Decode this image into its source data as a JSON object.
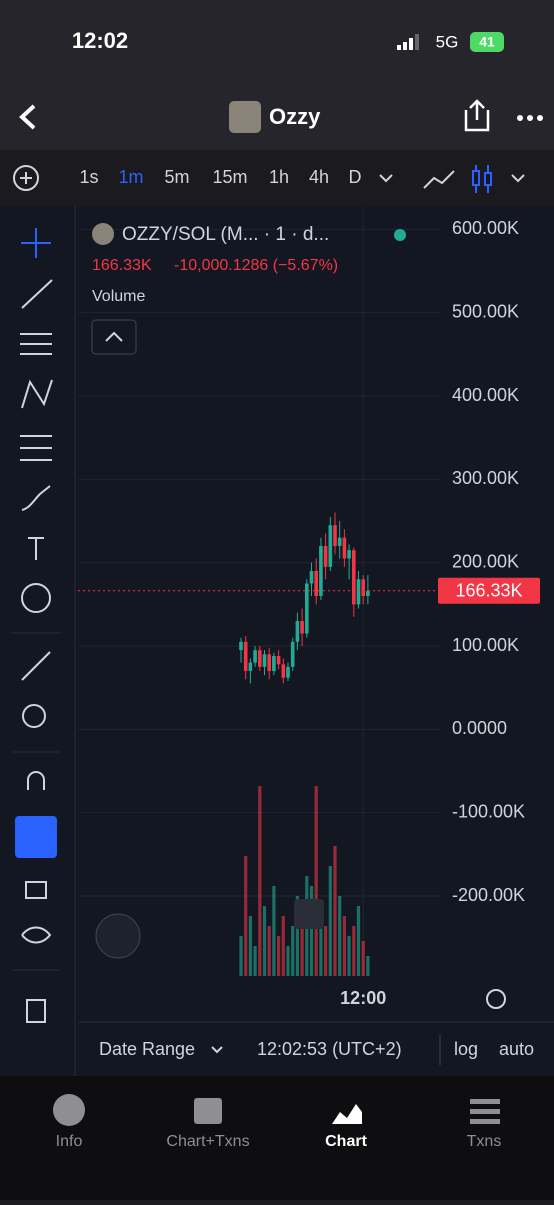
{
  "status": {
    "time": "12:02",
    "network": "5G",
    "battery": "41"
  },
  "header": {
    "title": "Ozzy"
  },
  "toolbar": {
    "intervals": [
      "1s",
      "1m",
      "5m",
      "15m",
      "1h",
      "4h",
      "D"
    ],
    "active": 1
  },
  "chart_data": {
    "type": "candlestick",
    "title": "OZZY/SOL (M... · 1 · d...",
    "price": "166.33K",
    "change": "-10,000.1286 (−5.67%)",
    "volume_label": "Volume",
    "categories": [
      null,
      null,
      null,
      null,
      null,
      null,
      null,
      null,
      null,
      null,
      null,
      null,
      null,
      null,
      null,
      null,
      null,
      null,
      null,
      null,
      null,
      null,
      null,
      null,
      null,
      null,
      "12:00",
      null
    ],
    "open": [
      95000,
      105000,
      70000,
      80000,
      95000,
      75000,
      90000,
      70000,
      88000,
      78000,
      62000,
      75000,
      105000,
      130000,
      115000,
      175000,
      190000,
      160000,
      220000,
      195000,
      245000,
      220000,
      230000,
      205000,
      215000,
      150000,
      180000,
      160000
    ],
    "high": [
      110000,
      112000,
      85000,
      100000,
      100000,
      95000,
      98000,
      92000,
      95000,
      85000,
      80000,
      110000,
      140000,
      145000,
      180000,
      200000,
      205000,
      230000,
      235000,
      255000,
      260000,
      250000,
      240000,
      222000,
      218000,
      190000,
      185000,
      185000
    ],
    "low": [
      80000,
      60000,
      55000,
      75000,
      70000,
      65000,
      60000,
      65000,
      72000,
      55000,
      58000,
      70000,
      95000,
      100000,
      110000,
      160000,
      150000,
      155000,
      180000,
      190000,
      210000,
      205000,
      195000,
      180000,
      135000,
      145000,
      150000,
      150000
    ],
    "close": [
      105000,
      70000,
      80000,
      95000,
      75000,
      90000,
      70000,
      88000,
      78000,
      62000,
      75000,
      105000,
      130000,
      115000,
      175000,
      190000,
      160000,
      220000,
      195000,
      245000,
      220000,
      230000,
      205000,
      215000,
      150000,
      180000,
      160000,
      166330
    ],
    "volume": [
      40,
      120,
      60,
      30,
      190,
      70,
      50,
      90,
      40,
      60,
      30,
      50,
      80,
      60,
      100,
      90,
      190,
      70,
      50,
      110,
      130,
      80,
      60,
      40,
      50,
      70,
      35,
      20
    ],
    "up_color": "#22ab94",
    "down_color": "#f23645",
    "last_price": {
      "value": 166330,
      "label": "166.33K"
    },
    "ylim": [
      -296000,
      628000
    ],
    "yticks": [
      {
        "value": 600000,
        "label": "600.00K"
      },
      {
        "value": 500000,
        "label": "500.00K"
      },
      {
        "value": 400000,
        "label": "400.00K"
      },
      {
        "value": 300000,
        "label": "300.00K"
      },
      {
        "value": 200000,
        "label": "200.00K"
      },
      {
        "value": 100000,
        "label": "100.00K"
      },
      {
        "value": 0,
        "label": "0.0000"
      },
      {
        "value": -100000,
        "label": "-100.00K"
      },
      {
        "value": -200000,
        "label": "-200.00K"
      }
    ],
    "grid": true
  },
  "footer": {
    "date_range": "Date Range",
    "clock": "12:02:53 (UTC+2)",
    "log": "log",
    "auto": "auto"
  },
  "tabs": [
    "Info",
    "Chart+Txns",
    "Chart",
    "Txns"
  ]
}
